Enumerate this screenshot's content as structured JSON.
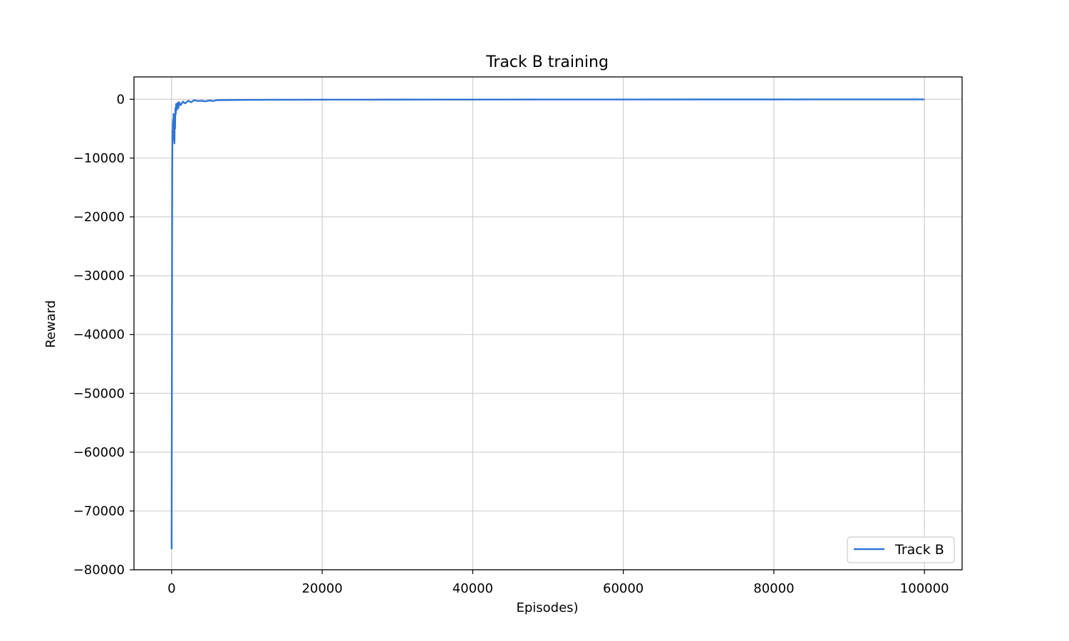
{
  "chart_data": {
    "type": "line",
    "title": "Track B training",
    "xlabel": "Episodes)",
    "ylabel": "Reward",
    "xlim": [
      -5000,
      105000
    ],
    "ylim": [
      -80000,
      3800
    ],
    "x_ticks": [
      0,
      20000,
      40000,
      60000,
      80000,
      100000
    ],
    "x_tick_labels": [
      "0",
      "20000",
      "40000",
      "60000",
      "80000",
      "100000"
    ],
    "y_ticks": [
      0,
      -10000,
      -20000,
      -30000,
      -40000,
      -50000,
      -60000,
      -70000,
      -80000
    ],
    "y_tick_labels": [
      "0",
      "−10000",
      "−20000",
      "−30000",
      "−40000",
      "−50000",
      "−60000",
      "−70000",
      "−80000"
    ],
    "grid": true,
    "legend_position": "bottom-right",
    "series": [
      {
        "name": "Track B",
        "color": "#3075d4",
        "x": [
          0,
          20,
          40,
          60,
          80,
          100,
          120,
          140,
          160,
          180,
          200,
          230,
          260,
          300,
          340,
          380,
          420,
          460,
          500,
          550,
          600,
          700,
          800,
          900,
          1000,
          1200,
          1500,
          1800,
          2200,
          2600,
          3000,
          3500,
          4000,
          4500,
          5000,
          5500,
          6000,
          8000,
          10000,
          15000,
          20000,
          30000,
          40000,
          50000,
          60000,
          70000,
          80000,
          90000,
          100000
        ],
        "y": [
          -76500,
          -60000,
          -45000,
          -27000,
          -12000,
          -8500,
          -5500,
          -7000,
          -4000,
          -6500,
          -3500,
          -5000,
          -2500,
          -6000,
          -4000,
          -7500,
          -3000,
          -5000,
          -1500,
          -2500,
          -800,
          -1800,
          -600,
          -1500,
          -500,
          -1000,
          -400,
          -700,
          -250,
          -500,
          -150,
          -300,
          -250,
          -350,
          -200,
          -300,
          -150,
          -120,
          -100,
          -80,
          -70,
          -60,
          -50,
          -40,
          -35,
          -30,
          -30,
          -25,
          -25
        ]
      }
    ]
  }
}
